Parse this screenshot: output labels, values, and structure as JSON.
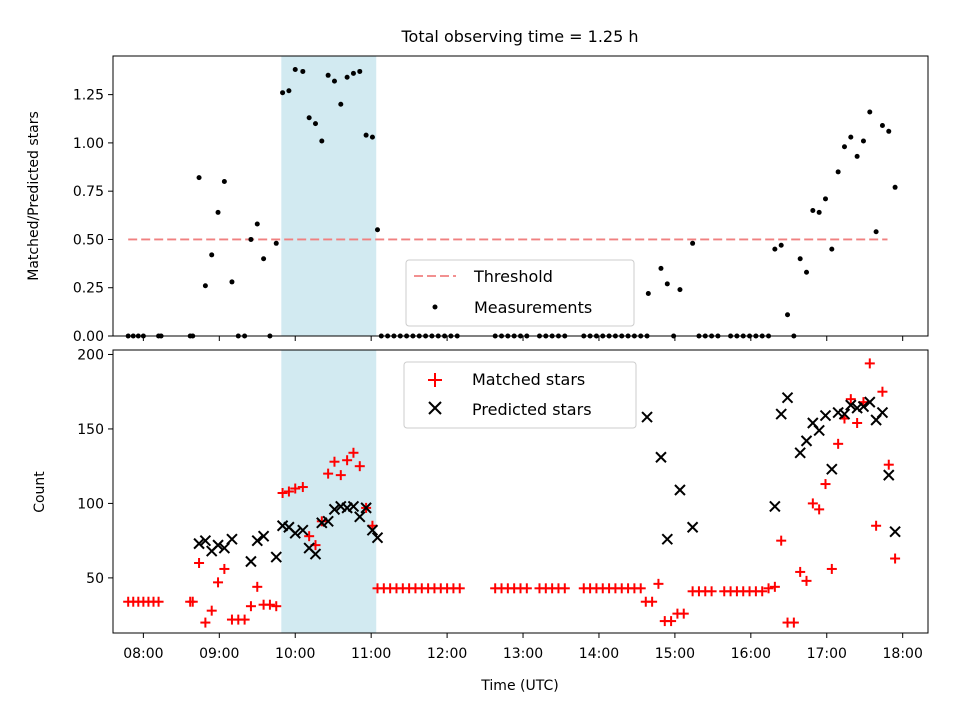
{
  "chart_data": {
    "type": "scatter",
    "title": "Total observing time = 1.25 h",
    "xlabel": "Time (UTC)",
    "x_ticks": [
      "08:00",
      "09:00",
      "10:00",
      "11:00",
      "12:00",
      "13:00",
      "14:00",
      "15:00",
      "16:00",
      "17:00",
      "18:00"
    ],
    "xlim": [
      "07:36",
      "18:20"
    ],
    "highlight_span": {
      "start": "09:49",
      "end": "11:04",
      "color": "#add8e6"
    },
    "top_panel": {
      "ylabel": "Matched/Predicted stars",
      "ylim": [
        0,
        1.45
      ],
      "y_ticks": [
        "0.00",
        "0.25",
        "0.50",
        "0.75",
        "1.00",
        "1.25"
      ],
      "legend_position": "lower-center",
      "threshold": {
        "name": "Threshold",
        "value": 0.5,
        "x_start": "07:48",
        "x_end": "17:48",
        "color": "#f08080",
        "style": "dashed"
      },
      "measurements": {
        "name": "Measurements",
        "color": "#000000",
        "points": [
          [
            "07:48",
            0
          ],
          [
            "07:52",
            0
          ],
          [
            "07:56",
            0
          ],
          [
            "08:00",
            0
          ],
          [
            "08:12",
            0
          ],
          [
            "08:14",
            0
          ],
          [
            "08:37",
            0
          ],
          [
            "08:39",
            0
          ],
          [
            "08:44",
            0.82
          ],
          [
            "08:49",
            0.26
          ],
          [
            "08:54",
            0.42
          ],
          [
            "08:59",
            0.64
          ],
          [
            "09:04",
            0.8
          ],
          [
            "09:10",
            0.28
          ],
          [
            "09:15",
            0
          ],
          [
            "09:20",
            0
          ],
          [
            "09:25",
            0.5
          ],
          [
            "09:30",
            0.58
          ],
          [
            "09:35",
            0.4
          ],
          [
            "09:40",
            0
          ],
          [
            "09:45",
            0.48
          ],
          [
            "09:50",
            1.26
          ],
          [
            "09:55",
            1.27
          ],
          [
            "10:00",
            1.38
          ],
          [
            "10:06",
            1.37
          ],
          [
            "10:11",
            1.13
          ],
          [
            "10:16",
            1.1
          ],
          [
            "10:21",
            1.01
          ],
          [
            "10:26",
            1.35
          ],
          [
            "10:31",
            1.32
          ],
          [
            "10:36",
            1.2
          ],
          [
            "10:41",
            1.34
          ],
          [
            "10:46",
            1.36
          ],
          [
            "10:51",
            1.37
          ],
          [
            "10:56",
            1.04
          ],
          [
            "11:01",
            1.03
          ],
          [
            "11:05",
            0.55
          ],
          [
            "11:08",
            0
          ],
          [
            "11:13",
            0
          ],
          [
            "11:18",
            0
          ],
          [
            "11:23",
            0
          ],
          [
            "11:28",
            0
          ],
          [
            "11:33",
            0
          ],
          [
            "11:38",
            0
          ],
          [
            "11:43",
            0
          ],
          [
            "11:48",
            0
          ],
          [
            "11:53",
            0
          ],
          [
            "11:58",
            0
          ],
          [
            "12:03",
            0
          ],
          [
            "12:08",
            0
          ],
          [
            "12:38",
            0
          ],
          [
            "12:43",
            0
          ],
          [
            "12:48",
            0
          ],
          [
            "12:53",
            0
          ],
          [
            "12:58",
            0
          ],
          [
            "13:03",
            0
          ],
          [
            "13:13",
            0
          ],
          [
            "13:18",
            0
          ],
          [
            "13:23",
            0
          ],
          [
            "13:28",
            0
          ],
          [
            "13:33",
            0
          ],
          [
            "13:48",
            0
          ],
          [
            "13:53",
            0
          ],
          [
            "13:58",
            0
          ],
          [
            "14:03",
            0
          ],
          [
            "14:08",
            0
          ],
          [
            "14:13",
            0
          ],
          [
            "14:18",
            0
          ],
          [
            "14:23",
            0
          ],
          [
            "14:28",
            0
          ],
          [
            "14:33",
            0
          ],
          [
            "14:38",
            0
          ],
          [
            "14:39",
            0.22
          ],
          [
            "14:49",
            0.35
          ],
          [
            "14:54",
            0.27
          ],
          [
            "14:59",
            0
          ],
          [
            "15:04",
            0.24
          ],
          [
            "15:14",
            0.48
          ],
          [
            "15:19",
            0
          ],
          [
            "15:24",
            0
          ],
          [
            "15:29",
            0
          ],
          [
            "15:34",
            0
          ],
          [
            "15:44",
            0
          ],
          [
            "15:49",
            0
          ],
          [
            "15:54",
            0
          ],
          [
            "15:59",
            0
          ],
          [
            "16:04",
            0
          ],
          [
            "16:09",
            0
          ],
          [
            "16:14",
            0
          ],
          [
            "16:19",
            0.45
          ],
          [
            "16:24",
            0.47
          ],
          [
            "16:29",
            0.11
          ],
          [
            "16:34",
            0
          ],
          [
            "16:39",
            0.4
          ],
          [
            "16:44",
            0.33
          ],
          [
            "16:49",
            0.65
          ],
          [
            "16:54",
            0.64
          ],
          [
            "16:59",
            0.71
          ],
          [
            "17:04",
            0.45
          ],
          [
            "17:09",
            0.85
          ],
          [
            "17:14",
            0.98
          ],
          [
            "17:19",
            1.03
          ],
          [
            "17:24",
            0.93
          ],
          [
            "17:29",
            1.01
          ],
          [
            "17:34",
            1.16
          ],
          [
            "17:39",
            0.54
          ],
          [
            "17:44",
            1.09
          ],
          [
            "17:49",
            1.06
          ],
          [
            "17:54",
            0.77
          ]
        ]
      }
    },
    "bottom_panel": {
      "ylabel": "Count",
      "ylim": [
        13,
        203
      ],
      "y_ticks": [
        "50",
        "100",
        "150",
        "200"
      ],
      "legend_position": "upper-center",
      "series": [
        {
          "name": "Matched stars",
          "marker": "plus",
          "color": "#ff0000",
          "points": [
            [
              "07:48",
              34
            ],
            [
              "07:52",
              34
            ],
            [
              "07:56",
              34
            ],
            [
              "08:00",
              34
            ],
            [
              "08:04",
              34
            ],
            [
              "08:08",
              34
            ],
            [
              "08:12",
              34
            ],
            [
              "08:37",
              34
            ],
            [
              "08:39",
              34
            ],
            [
              "08:44",
              60
            ],
            [
              "08:49",
              20
            ],
            [
              "08:54",
              28
            ],
            [
              "08:59",
              47
            ],
            [
              "09:04",
              56
            ],
            [
              "09:10",
              22
            ],
            [
              "09:15",
              22
            ],
            [
              "09:20",
              22
            ],
            [
              "09:25",
              31
            ],
            [
              "09:30",
              44
            ],
            [
              "09:35",
              32
            ],
            [
              "09:40",
              32
            ],
            [
              "09:45",
              31
            ],
            [
              "09:50",
              107
            ],
            [
              "09:55",
              108
            ],
            [
              "10:00",
              110
            ],
            [
              "10:06",
              111
            ],
            [
              "10:11",
              78
            ],
            [
              "10:16",
              72
            ],
            [
              "10:21",
              88
            ],
            [
              "10:26",
              120
            ],
            [
              "10:31",
              128
            ],
            [
              "10:36",
              119
            ],
            [
              "10:41",
              129
            ],
            [
              "10:46",
              134
            ],
            [
              "10:51",
              125
            ],
            [
              "10:56",
              97
            ],
            [
              "11:01",
              85
            ],
            [
              "11:05",
              43
            ],
            [
              "11:10",
              43
            ],
            [
              "11:15",
              43
            ],
            [
              "11:20",
              43
            ],
            [
              "11:25",
              43
            ],
            [
              "11:30",
              43
            ],
            [
              "11:35",
              43
            ],
            [
              "11:40",
              43
            ],
            [
              "11:45",
              43
            ],
            [
              "11:50",
              43
            ],
            [
              "11:55",
              43
            ],
            [
              "12:00",
              43
            ],
            [
              "12:05",
              43
            ],
            [
              "12:10",
              43
            ],
            [
              "12:38",
              43
            ],
            [
              "12:43",
              43
            ],
            [
              "12:48",
              43
            ],
            [
              "12:53",
              43
            ],
            [
              "12:58",
              43
            ],
            [
              "13:03",
              43
            ],
            [
              "13:13",
              43
            ],
            [
              "13:18",
              43
            ],
            [
              "13:23",
              43
            ],
            [
              "13:28",
              43
            ],
            [
              "13:33",
              43
            ],
            [
              "13:48",
              43
            ],
            [
              "13:53",
              43
            ],
            [
              "13:58",
              43
            ],
            [
              "14:03",
              43
            ],
            [
              "14:08",
              43
            ],
            [
              "14:13",
              43
            ],
            [
              "14:18",
              43
            ],
            [
              "14:23",
              43
            ],
            [
              "14:28",
              43
            ],
            [
              "14:33",
              43
            ],
            [
              "14:37",
              34
            ],
            [
              "14:42",
              34
            ],
            [
              "14:47",
              46
            ],
            [
              "14:52",
              21
            ],
            [
              "14:57",
              21
            ],
            [
              "15:02",
              26
            ],
            [
              "15:07",
              26
            ],
            [
              "15:14",
              41
            ],
            [
              "15:19",
              41
            ],
            [
              "15:24",
              41
            ],
            [
              "15:29",
              41
            ],
            [
              "15:39",
              41
            ],
            [
              "15:44",
              41
            ],
            [
              "15:49",
              41
            ],
            [
              "15:54",
              41
            ],
            [
              "15:59",
              41
            ],
            [
              "16:04",
              41
            ],
            [
              "16:09",
              41
            ],
            [
              "16:14",
              43
            ],
            [
              "16:19",
              44
            ],
            [
              "16:24",
              75
            ],
            [
              "16:29",
              20
            ],
            [
              "16:34",
              20
            ],
            [
              "16:39",
              54
            ],
            [
              "16:44",
              48
            ],
            [
              "16:49",
              100
            ],
            [
              "16:54",
              96
            ],
            [
              "16:59",
              113
            ],
            [
              "17:04",
              56
            ],
            [
              "17:09",
              140
            ],
            [
              "17:14",
              157
            ],
            [
              "17:19",
              170
            ],
            [
              "17:24",
              154
            ],
            [
              "17:29",
              168
            ],
            [
              "17:34",
              194
            ],
            [
              "17:39",
              85
            ],
            [
              "17:44",
              175
            ],
            [
              "17:49",
              126
            ],
            [
              "17:54",
              63
            ]
          ]
        },
        {
          "name": "Predicted stars",
          "marker": "x",
          "color": "#000000",
          "points": [
            [
              "08:44",
              73
            ],
            [
              "08:49",
              75
            ],
            [
              "08:54",
              68
            ],
            [
              "08:59",
              72
            ],
            [
              "09:04",
              70
            ],
            [
              "09:10",
              76
            ],
            [
              "09:25",
              61
            ],
            [
              "09:30",
              75
            ],
            [
              "09:35",
              78
            ],
            [
              "09:45",
              64
            ],
            [
              "09:50",
              85
            ],
            [
              "09:55",
              84
            ],
            [
              "10:00",
              80
            ],
            [
              "10:06",
              82
            ],
            [
              "10:11",
              70
            ],
            [
              "10:16",
              66
            ],
            [
              "10:21",
              87
            ],
            [
              "10:26",
              88
            ],
            [
              "10:31",
              96
            ],
            [
              "10:36",
              98
            ],
            [
              "10:41",
              97
            ],
            [
              "10:46",
              98
            ],
            [
              "10:51",
              91
            ],
            [
              "10:56",
              97
            ],
            [
              "11:01",
              82
            ],
            [
              "11:05",
              77
            ],
            [
              "14:38",
              158
            ],
            [
              "14:49",
              131
            ],
            [
              "14:54",
              76
            ],
            [
              "15:04",
              109
            ],
            [
              "15:14",
              84
            ],
            [
              "16:19",
              98
            ],
            [
              "16:24",
              160
            ],
            [
              "16:29",
              171
            ],
            [
              "16:39",
              134
            ],
            [
              "16:44",
              142
            ],
            [
              "16:49",
              154
            ],
            [
              "16:54",
              149
            ],
            [
              "16:59",
              159
            ],
            [
              "17:04",
              123
            ],
            [
              "17:09",
              161
            ],
            [
              "17:14",
              160
            ],
            [
              "17:19",
              166
            ],
            [
              "17:24",
              164
            ],
            [
              "17:29",
              165
            ],
            [
              "17:34",
              168
            ],
            [
              "17:39",
              156
            ],
            [
              "17:44",
              161
            ],
            [
              "17:49",
              119
            ],
            [
              "17:54",
              81
            ]
          ]
        }
      ]
    }
  }
}
